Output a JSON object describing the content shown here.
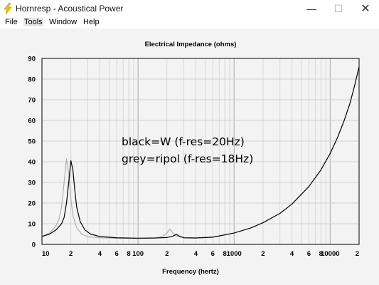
{
  "window": {
    "title": "Hornresp - Acoustical Power",
    "minimize_glyph": "—",
    "maximize_glyph": "☐",
    "close_glyph": "✕",
    "icon": "lightning-icon"
  },
  "menu": {
    "items": [
      {
        "label": "File"
      },
      {
        "label": "Tools"
      },
      {
        "label": "Window"
      },
      {
        "label": "Help"
      }
    ]
  },
  "chart_data": {
    "type": "line",
    "title": "Electrical Impedance (ohms)",
    "xlabel": "Frequency (hertz)",
    "ylabel": "",
    "x_scale": "log",
    "xlim": [
      10,
      20000
    ],
    "ylim": [
      0,
      90
    ],
    "y_ticks": [
      0,
      10,
      20,
      30,
      40,
      50,
      60,
      70,
      80,
      90
    ],
    "x_ticks": [
      {
        "value": 10,
        "label": "10"
      },
      {
        "value": 20,
        "label": "2"
      },
      {
        "value": 40,
        "label": "4"
      },
      {
        "value": 60,
        "label": "6"
      },
      {
        "value": 80,
        "label": "8"
      },
      {
        "value": 100,
        "label": "100"
      },
      {
        "value": 200,
        "label": "2"
      },
      {
        "value": 400,
        "label": "4"
      },
      {
        "value": 600,
        "label": "6"
      },
      {
        "value": 800,
        "label": "8"
      },
      {
        "value": 1000,
        "label": "1000"
      },
      {
        "value": 2000,
        "label": "2"
      },
      {
        "value": 4000,
        "label": "4"
      },
      {
        "value": 6000,
        "label": "6"
      },
      {
        "value": 8000,
        "label": "8"
      },
      {
        "value": 10000,
        "label": "10000"
      },
      {
        "value": 20000,
        "label": "2"
      }
    ],
    "grid": true,
    "annotations": [
      {
        "text": "black=W (f-res=20Hz)"
      },
      {
        "text": "grey=ripol (f-res=18Hz)"
      }
    ],
    "series": [
      {
        "color": "#000000",
        "points": [
          [
            10,
            3.8
          ],
          [
            12,
            5
          ],
          [
            14,
            7
          ],
          [
            16,
            10
          ],
          [
            17,
            13
          ],
          [
            18,
            20
          ],
          [
            19,
            30
          ],
          [
            20,
            40.5
          ],
          [
            21,
            36
          ],
          [
            22,
            26
          ],
          [
            23,
            18
          ],
          [
            25,
            11
          ],
          [
            28,
            7
          ],
          [
            32,
            5
          ],
          [
            40,
            3.8
          ],
          [
            60,
            3.2
          ],
          [
            100,
            3.0
          ],
          [
            150,
            3.1
          ],
          [
            200,
            3.3
          ],
          [
            230,
            4.0
          ],
          [
            250,
            4.8
          ],
          [
            270,
            4.0
          ],
          [
            300,
            3.2
          ],
          [
            400,
            3.1
          ],
          [
            600,
            3.5
          ],
          [
            1000,
            5.5
          ],
          [
            1500,
            8
          ],
          [
            2000,
            10.5
          ],
          [
            3000,
            15
          ],
          [
            4000,
            19.5
          ],
          [
            6000,
            28
          ],
          [
            8000,
            36
          ],
          [
            10000,
            44
          ],
          [
            12000,
            52
          ],
          [
            14000,
            60
          ],
          [
            16000,
            68
          ],
          [
            18000,
            77
          ],
          [
            20000,
            86
          ]
        ]
      },
      {
        "color": "#b0b0b0",
        "points": [
          [
            10,
            3.8
          ],
          [
            12,
            5.5
          ],
          [
            14,
            9
          ],
          [
            15,
            12
          ],
          [
            16,
            18
          ],
          [
            17,
            30
          ],
          [
            18,
            41.5
          ],
          [
            19,
            34
          ],
          [
            20,
            22
          ],
          [
            21,
            14
          ],
          [
            23,
            8
          ],
          [
            26,
            5
          ],
          [
            30,
            3.7
          ],
          [
            40,
            3.2
          ],
          [
            60,
            3.0
          ],
          [
            100,
            2.9
          ],
          [
            150,
            3.0
          ],
          [
            180,
            3.8
          ],
          [
            200,
            5.5
          ],
          [
            215,
            7.5
          ],
          [
            230,
            5.5
          ],
          [
            250,
            4.0
          ],
          [
            300,
            3.2
          ],
          [
            400,
            3.1
          ],
          [
            600,
            3.5
          ],
          [
            1000,
            5.5
          ]
        ]
      }
    ]
  }
}
